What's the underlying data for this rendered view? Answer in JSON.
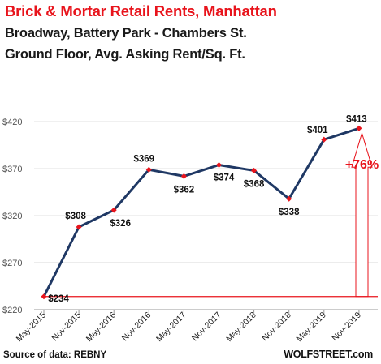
{
  "header": {
    "title": "Brick & Mortar Retail Rents, Manhattan",
    "subtitle_1": "Broadway, Battery Park - Chambers St.",
    "subtitle_2": "Ground Floor, Avg. Asking Rent/Sq. Ft."
  },
  "footer": {
    "source": "Source of data: REBNY",
    "brand": "WOLFSTREET.com"
  },
  "colors": {
    "line": "#1f3864",
    "marker": "#e8141c",
    "baseline": "#e8141c",
    "grid": "#d9d9d9",
    "title": "#e8141c"
  },
  "chart_data": {
    "type": "line",
    "title": "Brick & Mortar Retail Rents, Manhattan",
    "xlabel": "",
    "ylabel": "",
    "x": [
      "May-2015",
      "Nov-2015",
      "May-2016",
      "Nov-2016",
      "May-2017",
      "Nov-2017",
      "May-2018",
      "Nov-2018",
      "May-2019",
      "Nov-2019"
    ],
    "values": [
      234,
      308,
      326,
      369,
      362,
      374,
      368,
      338,
      401,
      413
    ],
    "data_labels": [
      "$234",
      "$308",
      "$326",
      "$369",
      "$362",
      "$374",
      "$368",
      "$338",
      "$401",
      "$413"
    ],
    "ylim": [
      220,
      440
    ],
    "yticks": [
      220,
      270,
      320,
      370,
      420
    ],
    "ytick_labels": [
      "$220",
      "$270",
      "$320",
      "$370",
      "$420"
    ],
    "grid": "horizontal",
    "baseline_value": 234,
    "annotation": "+76%"
  }
}
